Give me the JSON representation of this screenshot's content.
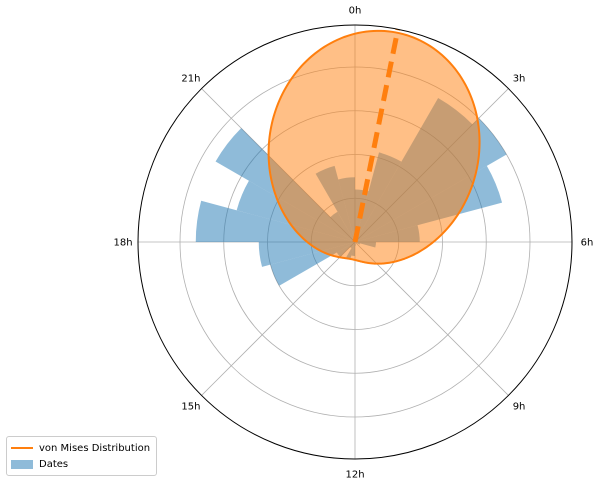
{
  "chart_data": {
    "type": "polar-bar",
    "hour_ticks": [
      "0h",
      "3h",
      "6h",
      "9h",
      "12h",
      "15h",
      "18h",
      "21h"
    ],
    "series": [
      {
        "name": "Dates",
        "color": "#1f77b4",
        "bins": [
          {
            "hour": 0.5,
            "value": 0.3
          },
          {
            "hour": 1.5,
            "value": 0.53
          },
          {
            "hour": 2.5,
            "value": 0.95
          },
          {
            "hour": 3.5,
            "value": 1.0
          },
          {
            "hour": 4.5,
            "value": 0.87
          },
          {
            "hour": 5.5,
            "value": 0.37
          },
          {
            "hour": 6.5,
            "value": 0.12
          },
          {
            "hour": 7.5,
            "value": 0.03
          },
          {
            "hour": 8.5,
            "value": 0.0
          },
          {
            "hour": 9.5,
            "value": 0.0
          },
          {
            "hour": 10.5,
            "value": 0.0
          },
          {
            "hour": 11.5,
            "value": 0.02
          },
          {
            "hour": 12.5,
            "value": 0.08
          },
          {
            "hour": 13.5,
            "value": 0.1
          },
          {
            "hour": 14.5,
            "value": 0.04
          },
          {
            "hour": 15.5,
            "value": 0.12
          },
          {
            "hour": 16.5,
            "value": 0.5
          },
          {
            "hour": 17.5,
            "value": 0.55
          },
          {
            "hour": 18.5,
            "value": 0.91
          },
          {
            "hour": 19.5,
            "value": 0.7
          },
          {
            "hour": 20.5,
            "value": 0.92
          },
          {
            "hour": 21.5,
            "value": 0.2
          },
          {
            "hour": 22.5,
            "value": 0.45
          },
          {
            "hour": 23.5,
            "value": 0.37
          }
        ]
      },
      {
        "name": "von Mises Distribution",
        "color": "#ff7f0e",
        "mean_hour": 0.76,
        "concentration": 1.25,
        "peak_value": 1.22
      }
    ],
    "rlim": [
      0,
      1.24
    ],
    "r_gridlines": [
      0.25,
      0.5,
      0.75,
      1.0
    ],
    "grid": true,
    "legend_location": "lower-left"
  },
  "legend": {
    "items": [
      {
        "label": "von Mises Distribution",
        "kind": "line"
      },
      {
        "label": "Dates",
        "kind": "patch"
      }
    ]
  }
}
